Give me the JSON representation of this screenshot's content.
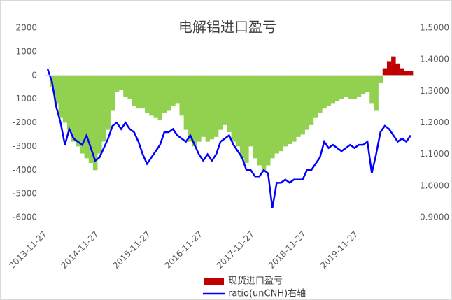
{
  "chart_data": {
    "type": "bar_line",
    "title": "电解铝进口盈亏",
    "categories": [
      "2013-11-27",
      null,
      null,
      null,
      null,
      null,
      null,
      null,
      null,
      null,
      null,
      null,
      "2014-11-27",
      null,
      null,
      null,
      null,
      null,
      null,
      null,
      null,
      null,
      null,
      null,
      "2015-11-27",
      null,
      null,
      null,
      null,
      null,
      null,
      null,
      null,
      null,
      null,
      null,
      "2016-11-27",
      null,
      null,
      null,
      null,
      null,
      null,
      null,
      null,
      null,
      null,
      null,
      "2017-11-27",
      null,
      null,
      null,
      null,
      null,
      null,
      null,
      null,
      null,
      null,
      null,
      "2018-11-27",
      null,
      null,
      null,
      null,
      null,
      null,
      null,
      null,
      null,
      null,
      null,
      "2019-11-27",
      null,
      null,
      null,
      null,
      null,
      null,
      null,
      null,
      null,
      null,
      null,
      null
    ],
    "series": [
      {
        "name": "现货进口盈亏",
        "type": "bar",
        "color": "#c00000",
        "negative_color": "#92d050",
        "values": [
          0,
          -500,
          -1200,
          -1800,
          -2000,
          -2300,
          -2800,
          -3000,
          -3300,
          -3500,
          -3700,
          -4000,
          -3300,
          -2800,
          -2300,
          -1500,
          -700,
          -600,
          -900,
          -1000,
          -1300,
          -1400,
          -1400,
          -1600,
          -1700,
          -1800,
          -1900,
          -1600,
          -1500,
          -1300,
          -1200,
          -1700,
          -2300,
          -2800,
          -3000,
          -2800,
          -2600,
          -2800,
          -2700,
          -2600,
          -2300,
          -2100,
          -2400,
          -2800,
          -3000,
          -3500,
          -3700,
          -3000,
          -3500,
          -3800,
          -4000,
          -3800,
          -3500,
          -3300,
          -3200,
          -3000,
          -2900,
          -2800,
          -2600,
          -2500,
          -2300,
          -2100,
          -1800,
          -1600,
          -1400,
          -1300,
          -1200,
          -1100,
          -1000,
          -900,
          -1000,
          -1000,
          -900,
          -800,
          -700,
          -1200,
          -1500,
          -300,
          300,
          600,
          800,
          500,
          300,
          200,
          200
        ]
      },
      {
        "name": "ratio(unCNH)右轴",
        "type": "line",
        "axis": "y2",
        "color": "#0000ff",
        "values": [
          1.37,
          1.33,
          1.25,
          1.2,
          1.13,
          1.18,
          1.15,
          1.14,
          1.13,
          1.16,
          1.12,
          1.08,
          1.09,
          1.12,
          1.15,
          1.19,
          1.2,
          1.18,
          1.2,
          1.18,
          1.17,
          1.14,
          1.1,
          1.07,
          1.09,
          1.11,
          1.13,
          1.17,
          1.17,
          1.18,
          1.16,
          1.15,
          1.14,
          1.16,
          1.13,
          1.1,
          1.08,
          1.1,
          1.08,
          1.1,
          1.14,
          1.15,
          1.16,
          1.13,
          1.11,
          1.09,
          1.05,
          1.05,
          1.03,
          1.03,
          1.05,
          1.04,
          0.93,
          1.01,
          1.01,
          1.02,
          1.01,
          1.02,
          1.02,
          1.02,
          1.05,
          1.05,
          1.07,
          1.09,
          1.14,
          1.12,
          1.13,
          1.12,
          1.11,
          1.12,
          1.13,
          1.12,
          1.13,
          1.13,
          1.14,
          1.04,
          1.1,
          1.17,
          1.19,
          1.18,
          1.16,
          1.14,
          1.15,
          1.14,
          1.16
        ]
      }
    ],
    "ylim": [
      -6000,
      2000
    ],
    "yticks": [
      2000,
      1000,
      0,
      -1000,
      -2000,
      -3000,
      -4000,
      -5000,
      -6000
    ],
    "y2lim": [
      0.9,
      1.5
    ],
    "y2ticks": [
      {
        "value": 1.5,
        "label": "1.5000"
      },
      {
        "value": 1.4,
        "label": "1.4000"
      },
      {
        "value": 1.3,
        "label": "1.3000"
      },
      {
        "value": 1.2,
        "label": "1.2000"
      },
      {
        "value": 1.1,
        "label": "1.1000"
      },
      {
        "value": 1.0,
        "label": "1.0000"
      },
      {
        "value": 0.9,
        "label": "0.9000"
      }
    ],
    "legend": "bottom"
  }
}
